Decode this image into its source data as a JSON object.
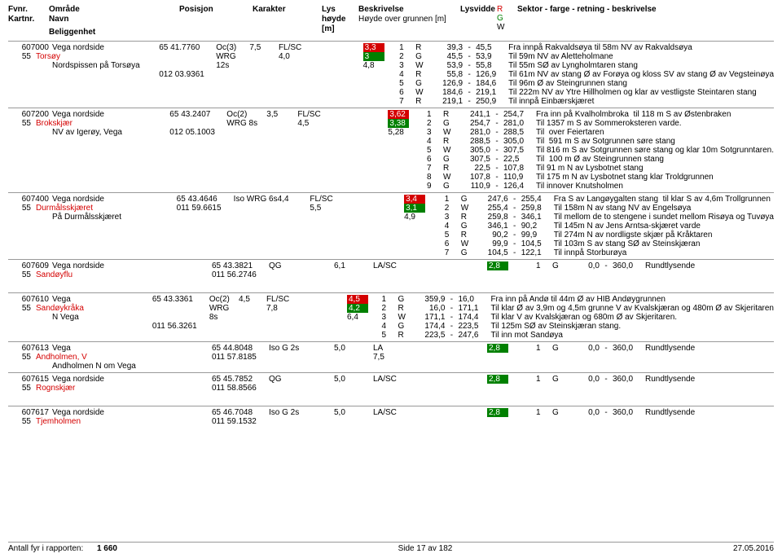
{
  "header": {
    "c1a": "Fvnr.",
    "c1b": "Kartnr.",
    "c2a": "Område",
    "c2b": "Navn",
    "c2c": "Beliggenhet",
    "c3": "Posisjon",
    "c4": "Karakter",
    "c5a": "Lys",
    "c5b": "høyde",
    "c5c": "[m]",
    "c6a": "Beskrivelse",
    "c6b": "Høyde over grunnen [m]",
    "c7a": "Lysvidde",
    "c7r": "R",
    "c7g": "G",
    "c7w": "W",
    "c8": "Sektor - farge - retning - beskrivelse"
  },
  "rows": [
    {
      "fvnr": "607000",
      "kart": "55",
      "omrade": "Vega nordside",
      "navn": "Torsøy",
      "beligg": "Nordspissen på Torsøya",
      "pos1": "65 41.7760",
      "pos2": "012 03.9361",
      "kar": "Oc(3) WRG 12s",
      "lys": "7,5",
      "besk1": "FL/SC",
      "besk2": "4,0",
      "lv_r": "3,3",
      "lv_g": "3",
      "lv_w": "4,8",
      "sektor": [
        {
          "n": "1",
          "c": "R",
          "f": "39,3",
          "t": "45,5",
          "d": "Fra innpå Rakvaldsøya til 58m NV av Rakvaldsøya"
        },
        {
          "n": "2",
          "c": "G",
          "f": "45,5",
          "t": "53,9",
          "d": "Til 59m NV av Aletteholmane"
        },
        {
          "n": "3",
          "c": "W",
          "f": "53,9",
          "t": "55,8",
          "d": "Til 55m SØ av Lyngholmtaren stang"
        },
        {
          "n": "4",
          "c": "R",
          "f": "55,8",
          "t": "126,9",
          "d": "Til 61m NV av stang Ø av Forøya og kloss SV av stang Ø av Vegsteinøya"
        },
        {
          "n": "5",
          "c": "G",
          "f": "126,9",
          "t": "184,6",
          "d": "Til 96m Ø av Steingrunnen stang"
        },
        {
          "n": "6",
          "c": "W",
          "f": "184,6",
          "t": "219,1",
          "d": "Til 222m NV av Ytre Hillholmen og klar av vestligste Steintaren stang"
        },
        {
          "n": "7",
          "c": "R",
          "f": "219,1",
          "t": "250,9",
          "d": "Til innpå Einbærskjæret"
        }
      ]
    },
    {
      "fvnr": "607200",
      "kart": "55",
      "omrade": "Vega nordside",
      "navn": "Brokskjær",
      "beligg": "NV av Igerøy, Vega",
      "pos1": "65 43.2407",
      "pos2": "012 05.1003",
      "kar": "Oc(2) WRG 8s",
      "lys": "3,5",
      "besk1": "FL/SC",
      "besk2": "4,5",
      "lv_r": "3,62",
      "lv_g": "3,38",
      "lv_w": "5,28",
      "sektor": [
        {
          "n": "1",
          "c": "R",
          "f": "241,1",
          "t": "254,7",
          "d": "Fra inn på Kvalholmbroka  til 118 m S av Østenbraken"
        },
        {
          "n": "2",
          "c": "G",
          "f": "254,7",
          "t": "281,0",
          "d": "Til 1357 m S av Sommeroksteren varde."
        },
        {
          "n": "3",
          "c": "W",
          "f": "281,0",
          "t": "288,5",
          "d": "Til  over Feiertaren"
        },
        {
          "n": "4",
          "c": "R",
          "f": "288,5",
          "t": "305,0",
          "d": "Til  591 m S av Sotgrunnen søre stang"
        },
        {
          "n": "5",
          "c": "W",
          "f": "305,0",
          "t": "307,5",
          "d": "Til 816 m S av Sotgrunnen søre stang og klar 10m Sotgrunntaren."
        },
        {
          "n": "6",
          "c": "G",
          "f": "307,5",
          "t": "22,5",
          "d": "Til  100 m Ø av Steingrunnen stang"
        },
        {
          "n": "7",
          "c": "R",
          "f": "22,5",
          "t": "107,8",
          "d": "Til 91 m N av Lysbotnet stang"
        },
        {
          "n": "8",
          "c": "W",
          "f": "107,8",
          "t": "110,9",
          "d": "Til 175 m N av Lysbotnet stang klar Troldgrunnen"
        },
        {
          "n": "9",
          "c": "G",
          "f": "110,9",
          "t": "126,4",
          "d": "Til innover Knutsholmen"
        }
      ]
    },
    {
      "fvnr": "607400",
      "kart": "55",
      "omrade": "Vega nordside",
      "navn": "Durmålsskjæret",
      "beligg": "På Durmålsskjæret",
      "pos1": "65 43.4646",
      "pos2": "011 59.6615",
      "kar": "Iso WRG 6s",
      "lys": "4,4",
      "besk1": "FL/SC",
      "besk2": "5,5",
      "lv_r": "3,4",
      "lv_g": "3,1",
      "lv_w": "4,9",
      "sektor": [
        {
          "n": "1",
          "c": "G",
          "f": "247,6",
          "t": "255,4",
          "d": "Fra S av Langøygalten stang  til klar S av 4,6m Trollgrunnen"
        },
        {
          "n": "2",
          "c": "W",
          "f": "255,4",
          "t": "259,8",
          "d": "Til 158m N av stang NV av Engelsøya"
        },
        {
          "n": "3",
          "c": "R",
          "f": "259,8",
          "t": "346,1",
          "d": "Til mellom de to stengene i sundet mellom Risøya og Tuvøya"
        },
        {
          "n": "4",
          "c": "G",
          "f": "346,1",
          "t": "90,2",
          "d": "Til 145m N av Jens Arntsa-skjæret varde"
        },
        {
          "n": "5",
          "c": "R",
          "f": "90,2",
          "t": "99,9",
          "d": "Til 274m N av nordligste skjær på Kråktaren"
        },
        {
          "n": "6",
          "c": "W",
          "f": "99,9",
          "t": "104,5",
          "d": "Til 103m S av stang SØ av Steinskjæran"
        },
        {
          "n": "7",
          "c": "G",
          "f": "104,5",
          "t": "122,1",
          "d": "Til innpå Storburøya"
        }
      ]
    },
    {
      "fvnr": "607609",
      "kart": "55",
      "omrade": "Vega nordside",
      "navn": "Sandøyflu",
      "beligg": "",
      "pos1": "65 43.3821",
      "pos2": "011 56.2746",
      "kar": "QG",
      "lys": "6,1",
      "besk1": "LA/SC",
      "besk2": "",
      "lv_r": "",
      "lv_g": "2,8",
      "lv_w": "",
      "sektor": [
        {
          "n": "1",
          "c": "G",
          "f": "0,0",
          "t": "360,0",
          "d": "Rundtlysende"
        }
      ],
      "gap_after": true
    },
    {
      "fvnr": "607610",
      "kart": "55",
      "omrade": "Vega",
      "navn": "Sandøykråka",
      "beligg": "N Vega",
      "pos1": "65 43.3361",
      "pos2": "011 56.3261",
      "kar": "Oc(2) WRG 8s",
      "lys": "4,5",
      "besk1": "FL/SC",
      "besk2": "7,8",
      "lv_r": "4,5",
      "lv_g": "4,2",
      "lv_w": "6,4",
      "sektor": [
        {
          "n": "1",
          "c": "G",
          "f": "359,9",
          "t": "16,0",
          "d": "Fra inn på Andø til 44m Ø av HIB Andøygrunnen"
        },
        {
          "n": "2",
          "c": "R",
          "f": "16,0",
          "t": "171,1",
          "d": "Til klar Ø av 3,9m og 4,5m grunne V av Kvalskjæran og 480m Ø av Skjeritaren"
        },
        {
          "n": "3",
          "c": "W",
          "f": "171,1",
          "t": "174,4",
          "d": "Til klar V av Kvalskjæran og 680m Ø av Skjeritaren."
        },
        {
          "n": "4",
          "c": "G",
          "f": "174,4",
          "t": "223,5",
          "d": "Til 125m SØ av Steinskjæran stang."
        },
        {
          "n": "5",
          "c": "R",
          "f": "223,5",
          "t": "247,6",
          "d": "Til inn mot Sandøya"
        }
      ]
    },
    {
      "fvnr": "607613",
      "kart": "55",
      "omrade": "Vega",
      "navn": "Andholmen, V",
      "beligg": "Andholmen N om Vega",
      "pos1": "65 44.8048",
      "pos2": "011 57.8185",
      "kar": "Iso G 2s",
      "lys": "5,0",
      "besk1": "LA",
      "besk2": "7,5",
      "lv_r": "",
      "lv_g": "2,8",
      "lv_w": "",
      "sektor": [
        {
          "n": "1",
          "c": "G",
          "f": "0,0",
          "t": "360,0",
          "d": "Rundtlysende"
        }
      ]
    },
    {
      "fvnr": "607615",
      "kart": "55",
      "omrade": "Vega nordside",
      "navn": "Rognskjær",
      "beligg": "",
      "pos1": "65 45.7852",
      "pos2": "011 58.8566",
      "kar": "QG",
      "lys": "5,0",
      "besk1": "LA/SC",
      "besk2": "",
      "lv_r": "",
      "lv_g": "2,8",
      "lv_w": "",
      "sektor": [
        {
          "n": "1",
          "c": "G",
          "f": "0,0",
          "t": "360,0",
          "d": "Rundtlysende"
        }
      ],
      "gap_after": true
    },
    {
      "fvnr": "607617",
      "kart": "55",
      "omrade": "Vega nordside",
      "navn": "Tjemholmen",
      "beligg": "",
      "pos1": "65 46.7048",
      "pos2": "011 59.1532",
      "kar": "Iso G 2s",
      "lys": "5,0",
      "besk1": "LA/SC",
      "besk2": "",
      "lv_r": "",
      "lv_g": "2,8",
      "lv_w": "",
      "sektor": [
        {
          "n": "1",
          "c": "G",
          "f": "0,0",
          "t": "360,0",
          "d": "Rundtlysende"
        }
      ]
    }
  ],
  "footer": {
    "left_label": "Antall fyr i rapporten:",
    "left_value": "1 660",
    "center": "Side 17 av 182",
    "right": "27.05.2016"
  }
}
